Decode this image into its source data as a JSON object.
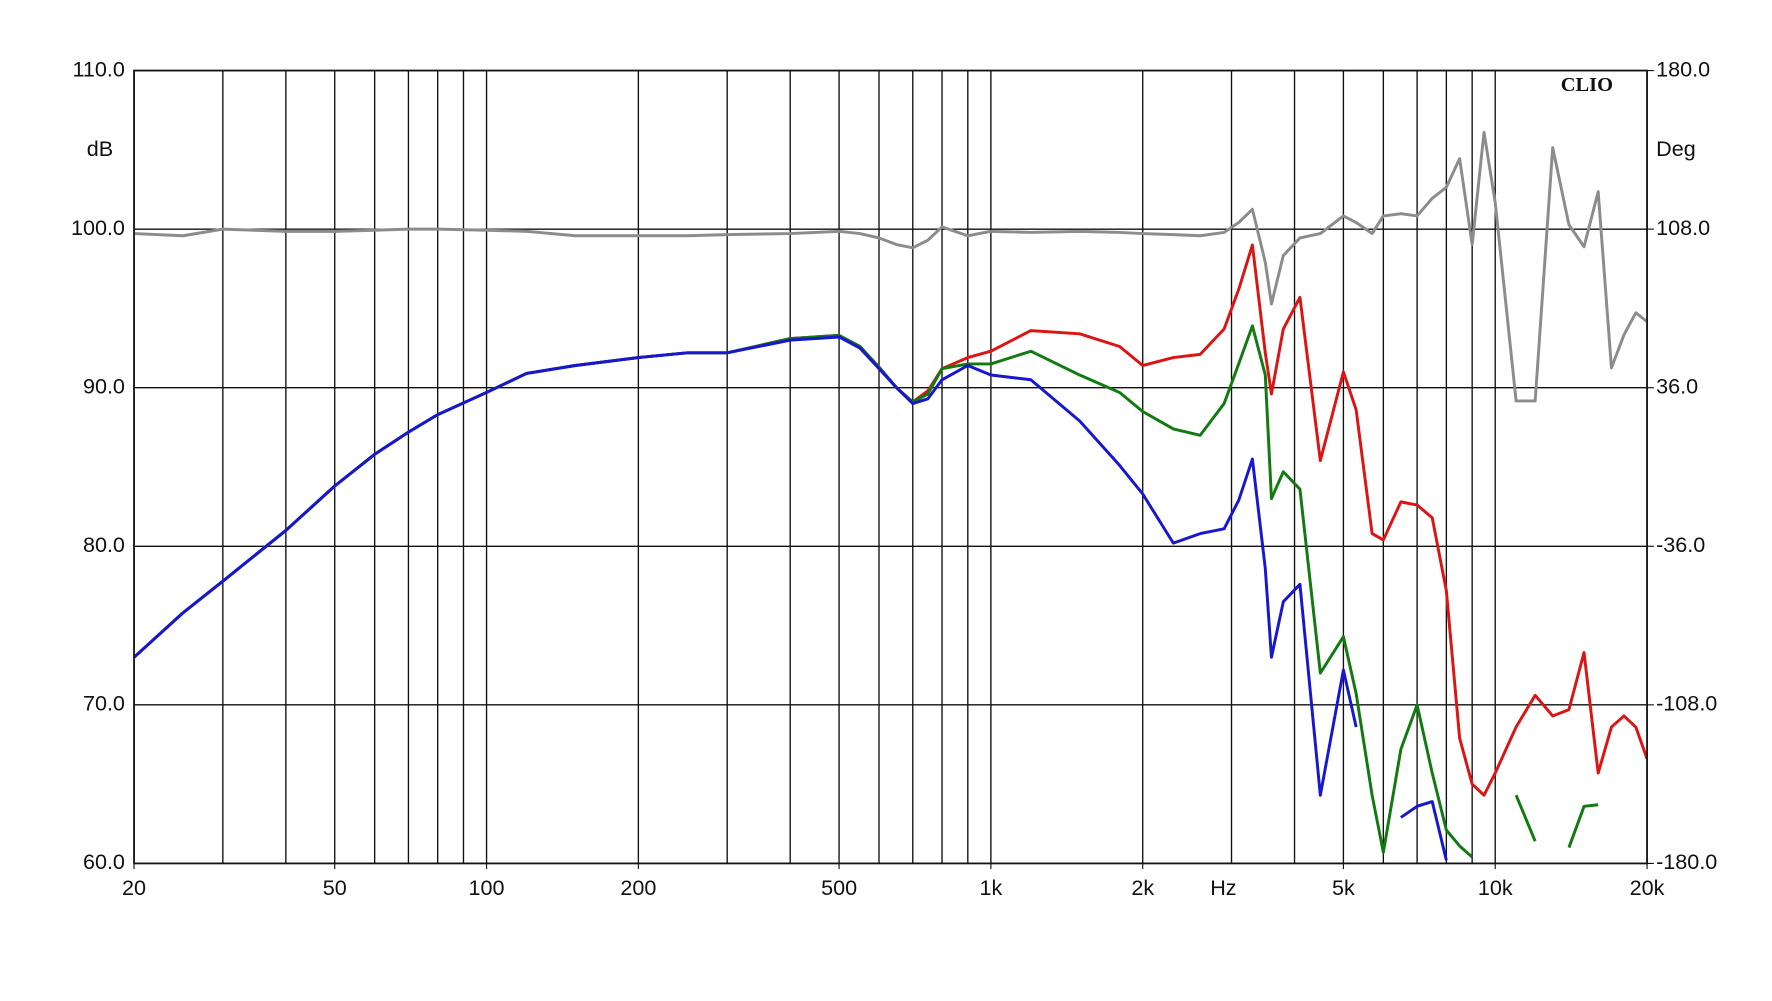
{
  "chart_data": {
    "type": "line",
    "y_label": "dB",
    "y2_label": "Deg",
    "x_label": "Hz",
    "annotation": "CLIO",
    "log_x": true,
    "grid": true,
    "xlim": [
      20,
      20000
    ],
    "ylim": [
      60,
      110
    ],
    "y2lim": [
      -180,
      180
    ],
    "xticks": [
      20,
      50,
      100,
      200,
      500,
      {
        "value": 1000,
        "label": "1k"
      },
      {
        "value": 2000,
        "label": "2k"
      },
      {
        "value": 5000,
        "label": "5k"
      },
      {
        "value": 10000,
        "label": "10k"
      },
      {
        "value": 20000,
        "label": "20k"
      }
    ],
    "xgrid": [
      20,
      30,
      40,
      50,
      60,
      70,
      80,
      90,
      100,
      200,
      300,
      400,
      500,
      600,
      700,
      800,
      900,
      1000,
      2000,
      3000,
      4000,
      5000,
      6000,
      7000,
      8000,
      9000,
      10000,
      20000
    ],
    "yticks": [
      {
        "value": 60,
        "label": "60.0"
      },
      {
        "value": 70,
        "label": "70.0"
      },
      {
        "value": 80,
        "label": "80.0"
      },
      {
        "value": 90,
        "label": "90.0"
      },
      {
        "value": 100,
        "label": "100.0"
      },
      {
        "value": 110,
        "label": "110.0"
      }
    ],
    "y2ticks": [
      {
        "value": -180,
        "label": "-180.0"
      },
      {
        "value": -108,
        "label": "-108.0"
      },
      {
        "value": -36,
        "label": "-36.0"
      },
      {
        "value": 36,
        "label": "36.0"
      },
      {
        "value": 108,
        "label": "108.0"
      },
      {
        "value": 180,
        "label": "180.0"
      }
    ],
    "x": [
      20,
      25,
      30,
      40,
      50,
      60,
      70,
      80,
      100,
      120,
      150,
      200,
      250,
      300,
      400,
      500,
      550,
      600,
      650,
      700,
      750,
      800,
      900,
      1000,
      1200,
      1500,
      1800,
      2000,
      2300,
      2600,
      2900,
      3100,
      3300,
      3500,
      3600,
      3800,
      4100,
      4500,
      5000,
      5300,
      5700,
      6000,
      6500,
      7000,
      7500,
      8000,
      8500,
      9000,
      9500,
      10000,
      11000,
      12000,
      13000,
      14000,
      15000,
      16000,
      17000,
      18000,
      19000,
      20000
    ],
    "series": [
      {
        "color": "#8c8c8c",
        "axis": "y2",
        "values": [
          106,
          105,
          108,
          107,
          107,
          107.5,
          108,
          108,
          107.5,
          107,
          105,
          105,
          105,
          105.5,
          106,
          107,
          106,
          104,
          101,
          99.5,
          103,
          109,
          105,
          107,
          106.5,
          107,
          106.5,
          106,
          105.5,
          105,
          106.5,
          111,
          117,
          93,
          74,
          96,
          104,
          106,
          114,
          111,
          106,
          114,
          115,
          114,
          122,
          127,
          140,
          101,
          152,
          120,
          30,
          30,
          145,
          110,
          100,
          125,
          45,
          60,
          70,
          66
        ]
      },
      {
        "color": "#dc1414",
        "values": [
          73.0,
          75.8,
          77.8,
          81.0,
          83.8,
          85.8,
          87.2,
          88.3,
          89.7,
          90.9,
          91.4,
          91.9,
          92.2,
          92.2,
          93.1,
          93.3,
          92.6,
          91.3,
          90.0,
          89.1,
          89.8,
          91.2,
          91.9,
          92.3,
          93.6,
          93.4,
          92.6,
          91.4,
          91.9,
          92.1,
          93.7,
          96.2,
          99.0,
          92.2,
          89.6,
          93.7,
          95.7,
          85.4,
          91.0,
          88.6,
          80.8,
          80.4,
          82.8,
          82.6,
          81.8,
          77.2,
          67.9,
          65.0,
          64.3,
          65.7,
          68.6,
          70.6,
          69.3,
          69.7,
          73.3,
          65.7,
          68.6,
          69.3,
          68.6,
          66.6
        ]
      },
      {
        "color": "#117a11",
        "values": [
          73.0,
          75.8,
          77.8,
          81.0,
          83.8,
          85.8,
          87.2,
          88.3,
          89.7,
          90.9,
          91.4,
          91.9,
          92.2,
          92.2,
          93.1,
          93.3,
          92.6,
          91.3,
          90.0,
          89.1,
          89.6,
          91.2,
          91.5,
          91.5,
          92.3,
          90.8,
          89.7,
          88.5,
          87.4,
          87.0,
          89.0,
          91.5,
          93.9,
          90.8,
          83.0,
          84.7,
          83.6,
          72.0,
          74.3,
          70.7,
          64.3,
          60.7,
          67.2,
          70.0,
          65.7,
          62.1,
          61.1,
          60.4,
          null,
          null,
          64.3,
          61.4,
          null,
          61.0,
          63.6,
          63.7,
          null,
          null,
          null,
          null
        ]
      },
      {
        "color": "#1717d0",
        "values": [
          73.0,
          75.8,
          77.8,
          81.0,
          83.8,
          85.8,
          87.2,
          88.3,
          89.7,
          90.9,
          91.4,
          91.9,
          92.2,
          92.2,
          93.0,
          93.2,
          92.5,
          91.2,
          90.0,
          89.0,
          89.3,
          90.5,
          91.4,
          90.8,
          90.5,
          87.9,
          85.1,
          83.3,
          80.2,
          80.8,
          81.1,
          82.9,
          85.5,
          78.6,
          73.0,
          76.5,
          77.6,
          64.3,
          72.2,
          68.6,
          null,
          null,
          62.9,
          63.6,
          63.9,
          60.2,
          null,
          null,
          null,
          null,
          null,
          null,
          null,
          null,
          null,
          null,
          null,
          null,
          null,
          null
        ]
      }
    ]
  }
}
